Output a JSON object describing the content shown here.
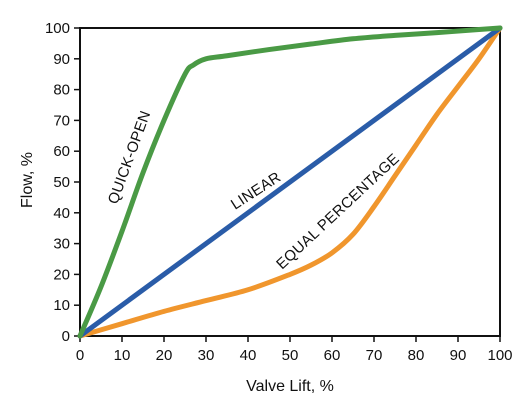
{
  "chart_data": {
    "type": "line",
    "title": "",
    "xlabel": "Valve Lift, %",
    "ylabel": "Flow, %",
    "xlim": [
      0,
      100
    ],
    "ylim": [
      0,
      100
    ],
    "x_ticks": [
      0,
      10,
      20,
      30,
      40,
      50,
      60,
      70,
      80,
      90,
      100
    ],
    "y_ticks": [
      0,
      10,
      20,
      30,
      40,
      50,
      60,
      70,
      80,
      90,
      100
    ],
    "grid": false,
    "legend": "none",
    "series": [
      {
        "name": "QUICK-OPEN",
        "color": "#4a9a45",
        "points": [
          [
            0,
            0
          ],
          [
            5,
            16
          ],
          [
            10,
            34
          ],
          [
            15,
            53
          ],
          [
            20,
            70
          ],
          [
            25,
            85
          ],
          [
            27,
            88
          ],
          [
            30,
            90
          ],
          [
            35,
            91
          ],
          [
            45,
            93
          ],
          [
            55,
            94.8
          ],
          [
            65,
            96.5
          ],
          [
            75,
            97.6
          ],
          [
            85,
            98.5
          ],
          [
            95,
            99.5
          ],
          [
            100,
            100
          ]
        ]
      },
      {
        "name": "LINEAR",
        "color": "#2a5ca8",
        "points": [
          [
            0,
            0
          ],
          [
            100,
            100
          ]
        ]
      },
      {
        "name": "EQUAL PERCENTAGE",
        "color": "#f0962d",
        "points": [
          [
            0,
            0
          ],
          [
            10,
            4
          ],
          [
            20,
            8
          ],
          [
            30,
            11.5
          ],
          [
            40,
            15
          ],
          [
            50,
            20
          ],
          [
            55,
            23
          ],
          [
            60,
            27
          ],
          [
            65,
            33
          ],
          [
            70,
            42
          ],
          [
            75,
            52
          ],
          [
            80,
            62
          ],
          [
            85,
            72
          ],
          [
            90,
            81
          ],
          [
            95,
            90
          ],
          [
            100,
            100
          ]
        ]
      }
    ]
  }
}
